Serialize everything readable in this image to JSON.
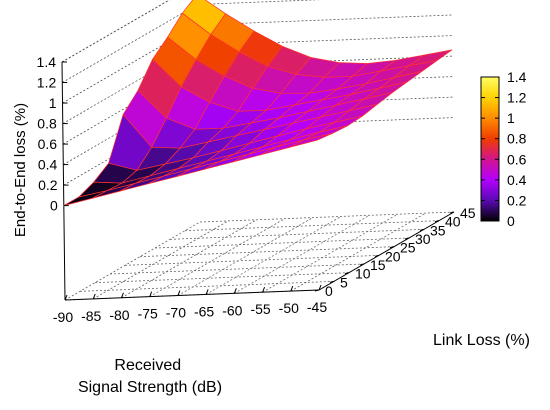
{
  "chart_data": {
    "type": "surface3d",
    "xlabel": "Received\nSignal Strength (dB)",
    "ylabel": "Link Loss (%)",
    "zlabel": "End-to-End loss (%)",
    "x": [
      -90,
      -85,
      -80,
      -75,
      -70,
      -65,
      -60,
      -55,
      -50,
      -45
    ],
    "y": [
      0,
      5,
      10,
      15,
      20,
      25,
      30,
      35,
      40,
      45
    ],
    "x_ticks": [
      "-90",
      "-85",
      "-80",
      "-75",
      "-70",
      "-65",
      "-60",
      "-55",
      "-50",
      "-45"
    ],
    "y_ticks": [
      "0",
      "5",
      "10",
      "15",
      "20",
      "25",
      "30",
      "35",
      "40",
      "45"
    ],
    "z_ticks": [
      "0",
      "0.2",
      "0.4",
      "0.6",
      "0.8",
      "1",
      "1.2",
      "1.4"
    ],
    "zlim": [
      0,
      1.4
    ],
    "colorbar": {
      "ticks": [
        "0",
        "0.2",
        "0.4",
        "0.6",
        "0.8",
        "1",
        "1.2",
        "1.4"
      ],
      "range": [
        0,
        1.4
      ],
      "colors": [
        "#000000",
        "#5a0ab4",
        "#b400ff",
        "#d2148c",
        "#f03c00",
        "#ff8c00",
        "#ffd200",
        "#ffff64"
      ]
    },
    "grid": true,
    "mesh_color": "#ff3030",
    "z": [
      [
        0.0,
        0.06,
        0.12,
        0.18,
        0.24,
        0.3,
        0.36,
        0.42,
        0.48,
        0.54
      ],
      [
        0.0,
        0.05,
        0.11,
        0.17,
        0.23,
        0.29,
        0.35,
        0.41,
        0.47,
        0.52
      ],
      [
        0.06,
        0.04,
        0.1,
        0.16,
        0.22,
        0.28,
        0.34,
        0.4,
        0.46,
        0.51
      ],
      [
        0.16,
        0.08,
        0.13,
        0.18,
        0.24,
        0.3,
        0.36,
        0.42,
        0.47,
        0.52
      ],
      [
        0.55,
        0.22,
        0.2,
        0.25,
        0.3,
        0.35,
        0.4,
        0.45,
        0.5,
        0.55
      ],
      [
        0.7,
        0.42,
        0.3,
        0.3,
        0.34,
        0.38,
        0.43,
        0.48,
        0.53,
        0.58
      ],
      [
        0.92,
        0.64,
        0.48,
        0.38,
        0.38,
        0.42,
        0.46,
        0.5,
        0.55,
        0.6
      ],
      [
        1.05,
        0.82,
        0.65,
        0.52,
        0.46,
        0.45,
        0.48,
        0.52,
        0.57,
        0.62
      ],
      [
        1.2,
        0.98,
        0.8,
        0.65,
        0.56,
        0.52,
        0.52,
        0.56,
        0.6,
        0.64
      ],
      [
        1.3,
        1.1,
        0.92,
        0.76,
        0.64,
        0.58,
        0.56,
        0.58,
        0.62,
        0.66
      ]
    ]
  }
}
